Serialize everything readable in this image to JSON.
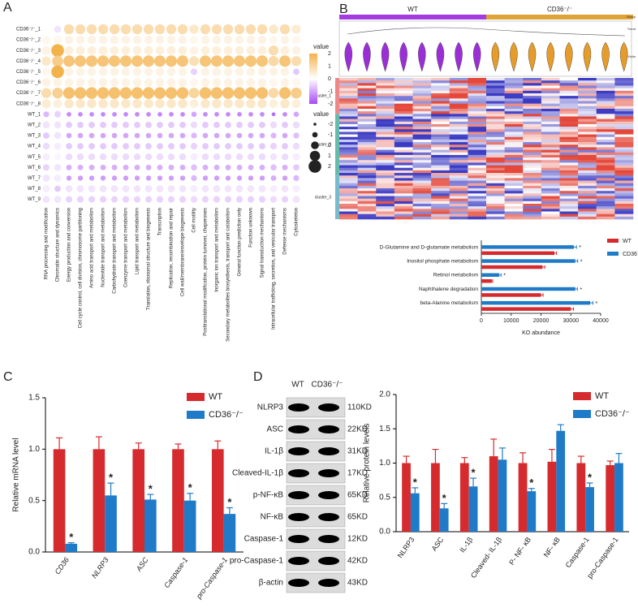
{
  "panels": [
    "A",
    "B",
    "C",
    "D"
  ],
  "heatmap": {
    "group": [
      "WT",
      "CD36⁻/⁻"
    ],
    "tracks": [
      "Group",
      "Trend",
      "Violin"
    ],
    "clusters": [
      "cluster_1",
      "cluster_2",
      "cluster_3"
    ]
  },
  "blot": {
    "lanes": [
      "WT",
      "CD36⁻/⁻"
    ],
    "proteins": [
      "NLRP3",
      "ASC",
      "IL-1β",
      "Cleaved-IL-1β",
      "p-NF-κB",
      "NF-κB",
      "Caspase-1",
      "pro-Caspase-1",
      "β-actin"
    ],
    "sizes": [
      "110KD",
      "22KD",
      "31KD",
      "17KD",
      "65KD",
      "65KD",
      "12KD",
      "42KD",
      "43KD"
    ]
  },
  "chart_data": [
    {
      "type": "dot",
      "color_low": "#a64bf4",
      "color_mid": "#ffffff",
      "color_high": "#f3b24a",
      "rows": [
        "CD36⁻/⁻_1",
        "CD36⁻/⁻_2",
        "CD36⁻/⁻_3",
        "CD36⁻/⁻_4",
        "CD36⁻/⁻_5",
        "CD36⁻/⁻_6",
        "CD36⁻/⁻_7",
        "CD36⁻/⁻_8",
        "WT_1",
        "WT_2",
        "WT_3",
        "WT_4",
        "WT_5",
        "WT_6",
        "WT_7",
        "WT_8",
        "WT_9"
      ],
      "categories": [
        "RNA processing and modification",
        "Chromatin structure and dynamics",
        "Energy production and conversion",
        "Cell cycle control, cell division, chromosome partitioning",
        "Amino acid transport and metabolism",
        "Nucleotide transport and metabolism",
        "Carbohydrate transport and metabolism",
        "Coenzyme transport and metabolism",
        "Lipid transport and metabolism",
        "Translation, ribosomal structure and biogenesis",
        "Transcription",
        "Replication, recombination and repair",
        "Cell wall/membrane/envelope biogenesis",
        "Cell motility",
        "Posttranslational modification, protein turnover, chaperones",
        "Inorganic ion transport and metabolism",
        "Secondary metabolites biosynthesis, transport and catabolism",
        "General function prediction only",
        "Function unknown",
        "Signal transduction mechanisms",
        "Intracellular trafficking, secretion, and vesicular transport",
        "Defense mechanisms",
        "Cytoskeleton"
      ],
      "values": [
        [
          0,
          -0.3,
          0.9,
          0.9,
          0.9,
          0.9,
          0.9,
          0.9,
          0.9,
          0.9,
          0.9,
          0.9,
          0.9,
          0.6,
          0.9,
          0.9,
          0.9,
          0.9,
          0.9,
          0.9,
          0.6,
          0.9,
          0.5
        ],
        [
          0.2,
          0.2,
          0.3,
          0.3,
          0.3,
          0.3,
          0.3,
          0.3,
          0.3,
          0.3,
          0.3,
          0.3,
          0.3,
          0.2,
          0.3,
          0.3,
          0.3,
          0.3,
          0.3,
          0.3,
          0.2,
          0.3,
          0.2
        ],
        [
          0.3,
          2,
          0.4,
          0.4,
          0.4,
          0.4,
          0.4,
          0.4,
          0.4,
          0.4,
          0.4,
          0.4,
          0.4,
          0.3,
          0.4,
          0.4,
          0.4,
          0.4,
          0.4,
          0.4,
          0.9,
          0.4,
          0.3
        ],
        [
          0.6,
          1.3,
          1.5,
          1.5,
          1.5,
          1.5,
          1.5,
          1.5,
          1.5,
          1.5,
          1.5,
          1.5,
          1.5,
          0.8,
          1.5,
          1.5,
          1.5,
          1.5,
          1.5,
          1.5,
          1,
          1.5,
          0.9
        ],
        [
          0.2,
          2,
          0.3,
          0.3,
          0.3,
          0.3,
          0.3,
          0.3,
          0.3,
          0.3,
          0.3,
          0.3,
          0.3,
          -0.5,
          0.3,
          0.3,
          0.3,
          0.3,
          0.3,
          0.3,
          0.3,
          0.3,
          -0.6
        ],
        [
          0.3,
          0.3,
          0.3,
          0.3,
          0.3,
          0.3,
          0.3,
          0.3,
          0.3,
          0.3,
          0.3,
          0.3,
          0.3,
          0.2,
          0.3,
          0.3,
          0.3,
          0.3,
          0.3,
          0.3,
          0.2,
          0.3,
          0.2
        ],
        [
          0.9,
          1.2,
          1.6,
          1.6,
          1.6,
          1.6,
          1.6,
          1.6,
          1.6,
          1.6,
          1.6,
          1.6,
          1.6,
          1.1,
          1.6,
          1.6,
          1.6,
          1.6,
          1.6,
          1.6,
          1,
          1.6,
          1.3
        ],
        [
          0.5,
          0.4,
          0.6,
          0.6,
          0.6,
          0.6,
          0.6,
          0.6,
          0.6,
          0.6,
          0.6,
          0.6,
          0.6,
          0.4,
          0.6,
          0.6,
          0.6,
          0.6,
          0.6,
          0.6,
          0.4,
          0.6,
          0.4
        ],
        [
          -0.8,
          -0.5,
          -1.3,
          -1.3,
          -1.3,
          -1.3,
          -1.3,
          -1.3,
          -1.3,
          -1.3,
          -1.3,
          -1.3,
          -1.3,
          -1,
          -1.3,
          -1.3,
          -1.3,
          -1.3,
          -1.3,
          -1.3,
          -1.6,
          -1.3,
          -1
        ],
        [
          -0.3,
          -0.3,
          -0.6,
          -0.6,
          -0.6,
          -0.6,
          -0.6,
          -0.6,
          -0.6,
          -0.6,
          -0.6,
          -0.6,
          -0.6,
          -0.4,
          -0.6,
          -0.6,
          -0.6,
          -0.6,
          -0.6,
          -0.6,
          -0.4,
          -0.6,
          -0.4
        ],
        [
          -0.6,
          -0.3,
          -1,
          -1,
          -1,
          -1,
          -1,
          -1,
          -1,
          -1,
          -1,
          -1,
          -1,
          -0.8,
          -1,
          -1,
          -1,
          -1,
          -1,
          -1,
          -0.8,
          -1,
          -0.7
        ],
        [
          -0.4,
          -0.2,
          -0.6,
          -0.6,
          -0.6,
          -0.6,
          -0.6,
          -0.6,
          -0.6,
          -0.6,
          -0.6,
          -0.6,
          -0.6,
          -0.5,
          -0.6,
          -0.6,
          -0.6,
          -0.6,
          -0.6,
          -0.6,
          -0.5,
          -0.6,
          -0.4
        ],
        [
          -0.2,
          -0.1,
          -0.4,
          -0.4,
          -0.4,
          -0.4,
          -0.4,
          -0.4,
          -0.4,
          -0.4,
          -0.4,
          -0.4,
          -0.4,
          -0.2,
          -0.4,
          -0.4,
          -0.4,
          -0.4,
          -0.4,
          -0.4,
          -0.3,
          -0.4,
          -0.2
        ],
        [
          -0.5,
          -0.3,
          -0.9,
          -0.9,
          -0.9,
          -0.9,
          -0.9,
          -0.9,
          -0.9,
          -0.9,
          -0.9,
          -0.9,
          -0.9,
          -0.7,
          -0.9,
          -0.9,
          -0.9,
          -0.9,
          -0.9,
          -0.9,
          -0.7,
          -0.9,
          -0.6
        ],
        [
          -0.3,
          -0.2,
          -1.1,
          -1.1,
          -1.1,
          -1.1,
          -1.1,
          -1.1,
          -1.1,
          -1.1,
          -1.1,
          -1.1,
          -1.1,
          -0.8,
          -1.1,
          -1.1,
          -1.1,
          -1.1,
          -1.1,
          -1.1,
          -0.9,
          -1.1,
          -0.8
        ],
        [
          -0.2,
          -0.6,
          -0.3,
          -0.3,
          -0.3,
          -0.3,
          -0.3,
          -0.3,
          -0.3,
          -0.3,
          -0.3,
          -0.3,
          -0.3,
          -0.2,
          -0.3,
          -0.3,
          -0.3,
          -0.3,
          -0.3,
          -0.3,
          -0.2,
          -0.3,
          -0.2
        ],
        [
          -0.3,
          -0.3,
          -0.5,
          -0.5,
          -0.5,
          -0.5,
          -0.5,
          -0.5,
          -0.5,
          -0.5,
          -0.5,
          -0.5,
          -0.5,
          -0.4,
          -0.5,
          -0.5,
          -0.5,
          -0.5,
          -0.5,
          -0.5,
          -0.4,
          -0.5,
          -0.3
        ]
      ],
      "legend_title": "value",
      "color_ticks": [
        2,
        1,
        0,
        -1,
        -2
      ],
      "size_ticks": [
        -2,
        -1,
        0,
        1,
        2
      ],
      "vlim": [
        -2,
        2
      ]
    },
    {
      "type": "hbar",
      "categories": [
        "D-Glutamine and D-glutamate metabolism",
        "Inositol phosphate metabolism",
        "Retinol metabolism",
        "Naphthalene degradation",
        "beta-Alanine metabolism"
      ],
      "series": [
        {
          "name": "WT",
          "color": "#d62b2e",
          "values": [
            24500,
            20500,
            3500,
            20000,
            30000
          ],
          "errors": [
            700,
            800,
            300,
            700,
            900
          ]
        },
        {
          "name": "CD36⁻/⁻",
          "color": "#1f7bc7",
          "values": [
            31000,
            31500,
            6000,
            31500,
            36500
          ],
          "errors": [
            900,
            800,
            600,
            700,
            900
          ],
          "annotations": [
            "*",
            "*",
            "*",
            "*",
            "*"
          ]
        }
      ],
      "xlim": [
        0,
        40000
      ],
      "xticks": [
        0,
        10000,
        20000,
        30000,
        40000
      ],
      "xlabel": "KO abundance"
    },
    {
      "type": "bar",
      "categories": [
        "CD36",
        "NLRP3",
        "ASC",
        "Caspase-1",
        "pro-Caspase-1"
      ],
      "series": [
        {
          "name": "WT",
          "color": "#d62b2e",
          "values": [
            1,
            1,
            1,
            1,
            1
          ],
          "errors": [
            0.11,
            0.12,
            0.06,
            0.05,
            0.08
          ]
        },
        {
          "name": "CD36⁻/⁻",
          "color": "#1f7bc7",
          "values": [
            0.08,
            0.55,
            0.51,
            0.5,
            0.37
          ],
          "errors": [
            0.01,
            0.12,
            0.05,
            0.07,
            0.06
          ],
          "annotations": [
            "*",
            "*",
            "*",
            "*",
            "*"
          ]
        }
      ],
      "ylim": [
        0,
        1.5
      ],
      "yticks": [
        {
          "value": 0,
          "label": "0.0"
        },
        0.5,
        {
          "value": 1,
          "label": "1.0"
        },
        1.5
      ],
      "ylabel": "Relative mRNA level"
    },
    {
      "type": "bar",
      "categories": [
        "NLRP3",
        "ASC",
        "IL-1β",
        "Cleaved- IL-1β",
        "P- NF- κB",
        "NF- κB",
        "Caspase-1",
        "pro-Caspase-1"
      ],
      "series": [
        {
          "name": "WT",
          "color": "#d62b2e",
          "values": [
            1,
            1,
            1,
            1.1,
            1,
            1.02,
            1,
            0.97
          ],
          "errors": [
            0.1,
            0.2,
            0.08,
            0.25,
            0.15,
            0.18,
            0.1,
            0.06
          ]
        },
        {
          "name": "CD36⁻/⁻",
          "color": "#1f7bc7",
          "values": [
            0.56,
            0.34,
            0.66,
            1.05,
            0.59,
            1.47,
            0.65,
            1
          ],
          "errors": [
            0.08,
            0.07,
            0.12,
            0.17,
            0.04,
            0.09,
            0.06,
            0.14
          ],
          "annotations": [
            "*",
            "*",
            "*",
            null,
            "*",
            null,
            "*",
            null
          ]
        }
      ],
      "ylim": [
        0,
        2
      ],
      "yticks": [
        {
          "value": 0,
          "label": "0.0"
        },
        0.5,
        {
          "value": 1,
          "label": "1.0"
        },
        1.5,
        {
          "value": 2,
          "label": "2.0"
        }
      ],
      "ylabel": "Relative protein levels"
    }
  ]
}
